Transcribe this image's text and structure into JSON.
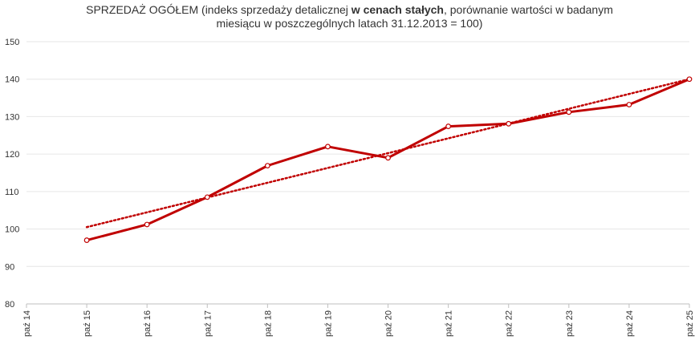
{
  "chart_data": {
    "type": "line",
    "title": {
      "part1": "SPRZEDAŻ OGÓŁEM (indeks sprzedaży detalicznej ",
      "bold": "w cenach stałych",
      "part2": ", porównanie wartości w badanym",
      "line2": "miesiącu w poszczególnych latach 31.12.2013 = 100)"
    },
    "categories": [
      "paź 14",
      "paź 15",
      "paź 16",
      "paź 17",
      "paź 18",
      "paź 19",
      "paź 20",
      "paź 21",
      "paź 22",
      "paź 23",
      "paź 24",
      "paź 25"
    ],
    "series": [
      {
        "values": [
          null,
          97.0,
          101.2,
          108.5,
          116.9,
          122.0,
          119.0,
          127.4,
          128.1,
          131.2,
          133.2,
          140.0
        ]
      }
    ],
    "trendline": {
      "style": "dotted",
      "start": 100.5,
      "end": 140.0
    },
    "yticks": [
      80,
      90,
      100,
      110,
      120,
      130,
      140,
      150
    ],
    "ylim": [
      80,
      150
    ],
    "grid": true,
    "color": "#c00000"
  }
}
